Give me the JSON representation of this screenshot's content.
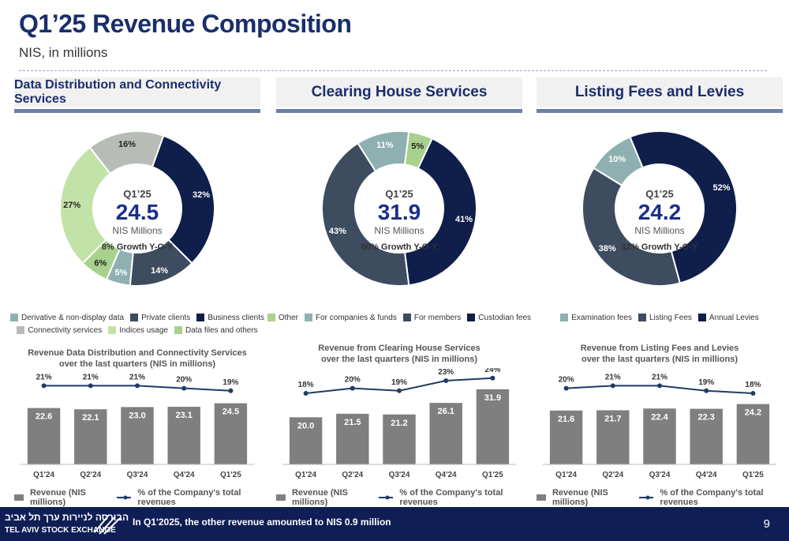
{
  "header": {
    "title": "Q1’25 Revenue Composition",
    "subtitle": "NIS, in millions"
  },
  "colors": {
    "navy": "#0f1e4a",
    "slate": "#3d4c5e",
    "teal": "#8fb0b0",
    "lightgreen": "#c2e3a7",
    "midgreen": "#a9d18e",
    "gray": "#b7bcb6",
    "bar": "#7f7f7f",
    "line": "#1f3b66"
  },
  "panels": [
    {
      "heading": "Data Distribution and Connectivity Services",
      "center": {
        "period": "Q1’25",
        "value": "24.5",
        "unit": "NIS Millions",
        "growth": "8% Growth Y-O-Y"
      },
      "legend": [
        {
          "label": "Derivative & non-display data",
          "color": "#8fb0b0"
        },
        {
          "label": "Private clients",
          "color": "#3d4c5e"
        },
        {
          "label": "Business clients",
          "color": "#0f1e4a"
        },
        {
          "label": "Connectivity services",
          "color": "#b7bcb6"
        },
        {
          "label": "Indices usage",
          "color": "#c2e3a7"
        },
        {
          "label": "Data files and others",
          "color": "#a9d18e"
        }
      ],
      "mini_title": [
        "Revenue Data Distribution and Connectivity Services",
        "over the last quarters (NIS in millions)"
      ],
      "bar_legend": {
        "bar": "Revenue (NIS millions)",
        "line": "% of the Company's total revenues"
      }
    },
    {
      "heading": "Clearing House Services",
      "center": {
        "period": "Q1’25",
        "value": "31.9",
        "unit": "NIS Millions",
        "growth": "60% Growth Y-O-Y"
      },
      "legend": [
        {
          "label": "Other",
          "color": "#a9d18e"
        },
        {
          "label": "For companies & funds",
          "color": "#8fb0b0"
        },
        {
          "label": "For members",
          "color": "#3d4c5e"
        },
        {
          "label": "Custodian fees",
          "color": "#0f1e4a"
        }
      ],
      "mini_title": [
        "Revenue from Clearing House Services",
        "over the last quarters (NIS in millions)"
      ],
      "bar_legend": {
        "bar": "Revenue (NIS millions)",
        "line": "% of the Company's total revenues"
      }
    },
    {
      "heading": "Listing Fees and Levies",
      "center": {
        "period": "Q1’25",
        "value": "24.2",
        "unit": "NIS Millions",
        "growth": "12% Growth Y-O-Y"
      },
      "legend": [
        {
          "label": "Examination fees",
          "color": "#8fb0b0"
        },
        {
          "label": "Listing Fees",
          "color": "#3d4c5e"
        },
        {
          "label": "Annual Levies",
          "color": "#0f1e4a"
        }
      ],
      "mini_title": [
        "Revenue from Listing Fees and Levies",
        "over the last quarters (NIS in millions)"
      ],
      "bar_legend": {
        "bar": "Revenue (NIS millions)",
        "line": "% of the Company's total revenues"
      }
    }
  ],
  "chart_data": [
    {
      "type": "pie",
      "variant": "donut",
      "labels": [
        "Business clients",
        "Private clients",
        "Derivative & non-display data",
        "Data files and others",
        "Indices usage",
        "Connectivity services"
      ],
      "values": [
        32,
        14,
        5,
        6,
        27,
        16
      ],
      "value_labels": [
        "32%",
        "14%",
        "5%",
        "6%",
        "27%",
        "16%"
      ],
      "colors": [
        "#0f1e4a",
        "#3d4c5e",
        "#8fb0b0",
        "#a9d18e",
        "#c2e3a7",
        "#b7bcb6"
      ]
    },
    {
      "type": "pie",
      "variant": "donut",
      "labels": [
        "Custodian fees",
        "For members",
        "For companies & funds",
        "Other"
      ],
      "values": [
        41,
        43,
        11,
        5
      ],
      "value_labels": [
        "41%",
        "43%",
        "11%",
        "5%"
      ],
      "colors": [
        "#0f1e4a",
        "#3d4c5e",
        "#8fb0b0",
        "#a9d18e"
      ]
    },
    {
      "type": "pie",
      "variant": "donut",
      "labels": [
        "Annual Levies",
        "Listing Fees",
        "Examination fees"
      ],
      "values": [
        52,
        38,
        10
      ],
      "value_labels": [
        "52%",
        "38%",
        "10%"
      ],
      "colors": [
        "#0f1e4a",
        "#3d4c5e",
        "#8fb0b0"
      ]
    },
    {
      "type": "bar",
      "categories": [
        "Q1'24",
        "Q2'24",
        "Q3'24",
        "Q4'24",
        "Q1'25"
      ],
      "series": [
        {
          "name": "Revenue (NIS millions)",
          "values": [
            22.6,
            22.1,
            23.0,
            23.1,
            24.5
          ],
          "labels": [
            "22.6",
            "22.1",
            "23.0",
            "23.1",
            "24.5"
          ]
        },
        {
          "name": "% of the Company's total revenues",
          "type": "line",
          "values": [
            21,
            21,
            21,
            20,
            19
          ],
          "labels": [
            "21%",
            "21%",
            "21%",
            "20%",
            "19%"
          ]
        }
      ]
    },
    {
      "type": "bar",
      "categories": [
        "Q1'24",
        "Q2'24",
        "Q3'24",
        "Q4'24",
        "Q1'25"
      ],
      "series": [
        {
          "name": "Revenue (NIS millions)",
          "values": [
            20.0,
            21.5,
            21.2,
            26.1,
            31.9
          ],
          "labels": [
            "20.0",
            "21.5",
            "21.2",
            "26.1",
            "31.9"
          ]
        },
        {
          "name": "% of the Company's total revenues",
          "type": "line",
          "values": [
            18,
            20,
            19,
            23,
            24
          ],
          "labels": [
            "18%",
            "20%",
            "19%",
            "23%",
            "24%"
          ]
        }
      ]
    },
    {
      "type": "bar",
      "categories": [
        "Q1'24",
        "Q2'24",
        "Q3'24",
        "Q4'24",
        "Q1'25"
      ],
      "series": [
        {
          "name": "Revenue (NIS millions)",
          "values": [
            21.6,
            21.7,
            22.4,
            22.3,
            24.2
          ],
          "labels": [
            "21.6",
            "21.7",
            "22.4",
            "22.3",
            "24.2"
          ]
        },
        {
          "name": "% of the Company's total revenues",
          "type": "line",
          "values": [
            20,
            21,
            21,
            19,
            18
          ],
          "labels": [
            "20%",
            "21%",
            "21%",
            "19%",
            "18%"
          ]
        }
      ]
    }
  ],
  "footer": {
    "logo_he": "הבורסה לניירות ערך תל אביב",
    "logo_en": "TEL AVIV STOCK EXCHANGE",
    "note": "In Q1'2025, the other revenue amounted to NIS 0.9 million",
    "page": "9"
  }
}
